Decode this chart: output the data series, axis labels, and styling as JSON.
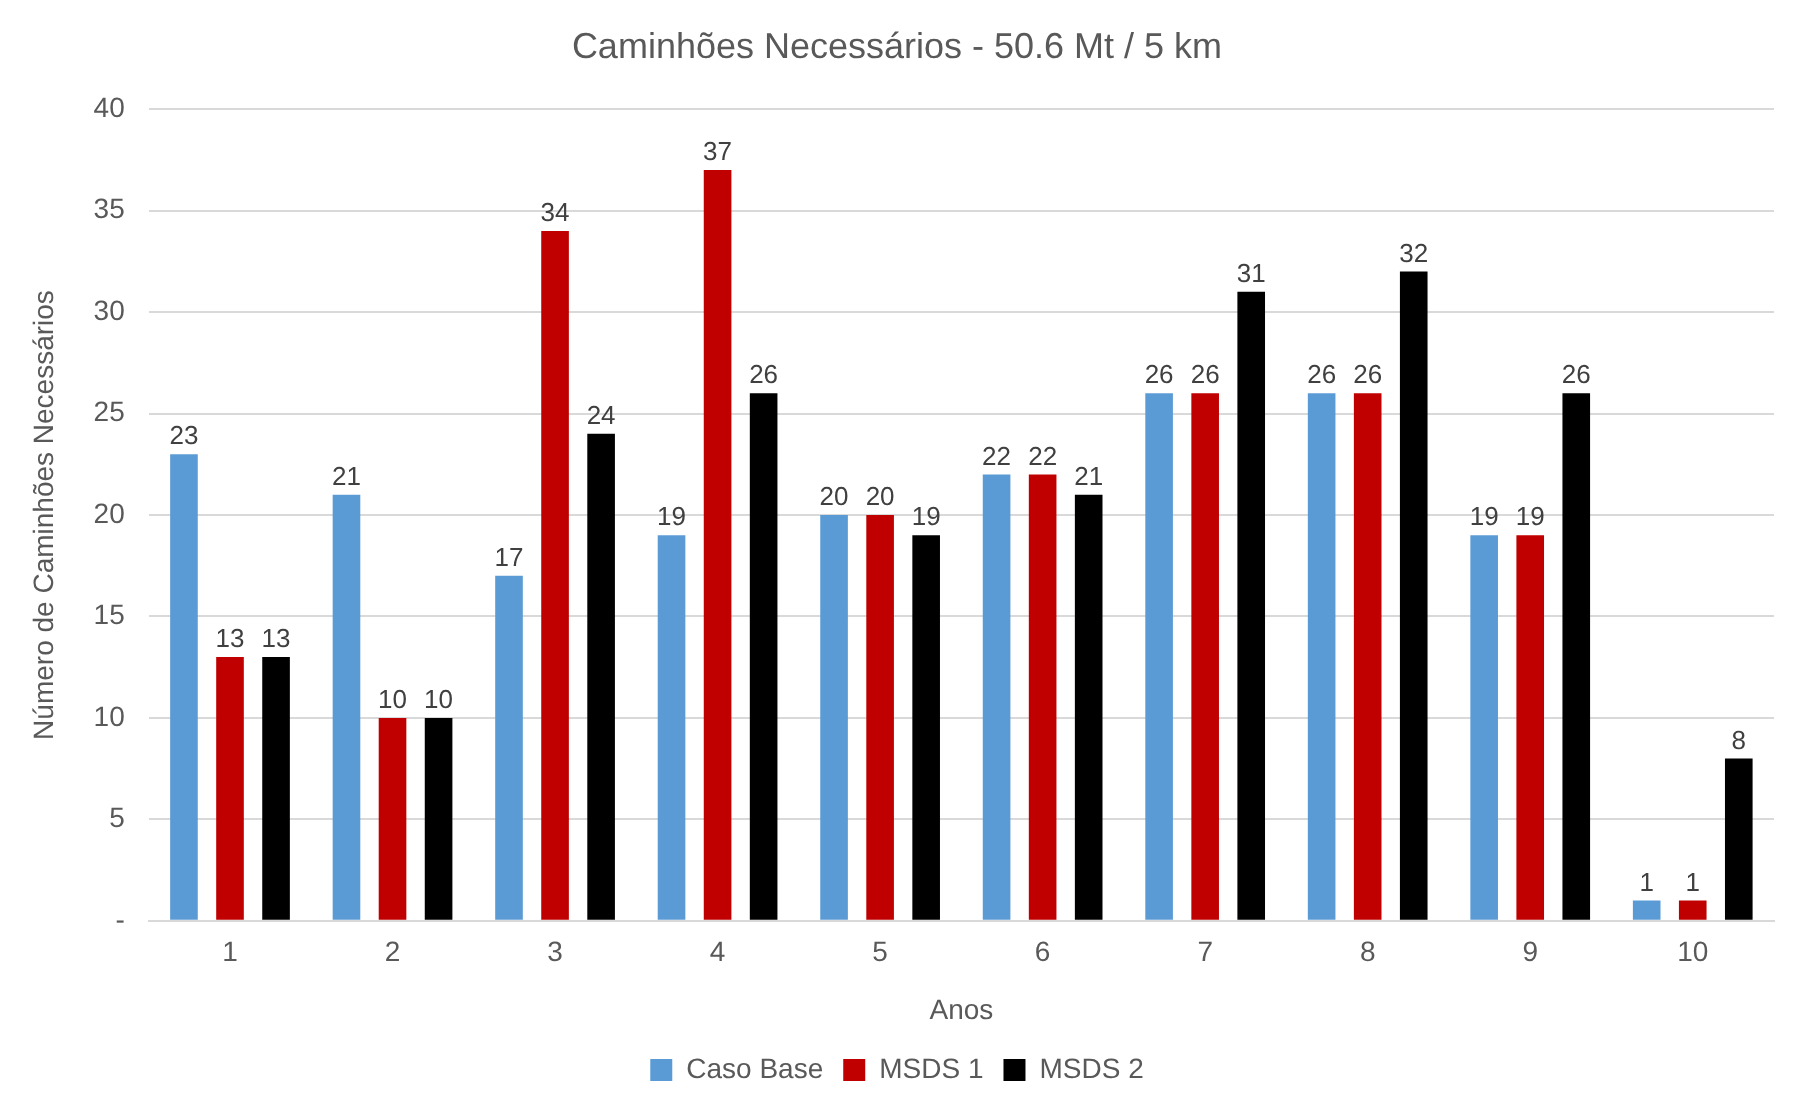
{
  "chart_data": {
    "type": "bar",
    "title": "Caminhões Necessários - 50.6 Mt / 5 km",
    "xlabel": "Anos",
    "ylabel": "Número de Caminhões Necessários",
    "categories": [
      "1",
      "2",
      "3",
      "4",
      "5",
      "6",
      "7",
      "8",
      "9",
      "10"
    ],
    "series": [
      {
        "name": "Caso Base",
        "color": "#5b9bd5",
        "values": [
          23,
          21,
          17,
          19,
          20,
          22,
          26,
          26,
          19,
          1
        ]
      },
      {
        "name": "MSDS 1",
        "color": "#c00000",
        "values": [
          13,
          10,
          34,
          37,
          20,
          22,
          26,
          26,
          19,
          1
        ]
      },
      {
        "name": "MSDS 2",
        "color": "#000000",
        "values": [
          13,
          10,
          24,
          26,
          19,
          21,
          31,
          32,
          26,
          8
        ]
      }
    ],
    "ylim": [
      0,
      40
    ],
    "yticks": [
      {
        "value": 0,
        "label": "-"
      },
      5,
      10,
      15,
      20,
      25,
      30,
      35,
      40
    ],
    "grid": "y",
    "legend": "bottom",
    "data_labels": true
  }
}
